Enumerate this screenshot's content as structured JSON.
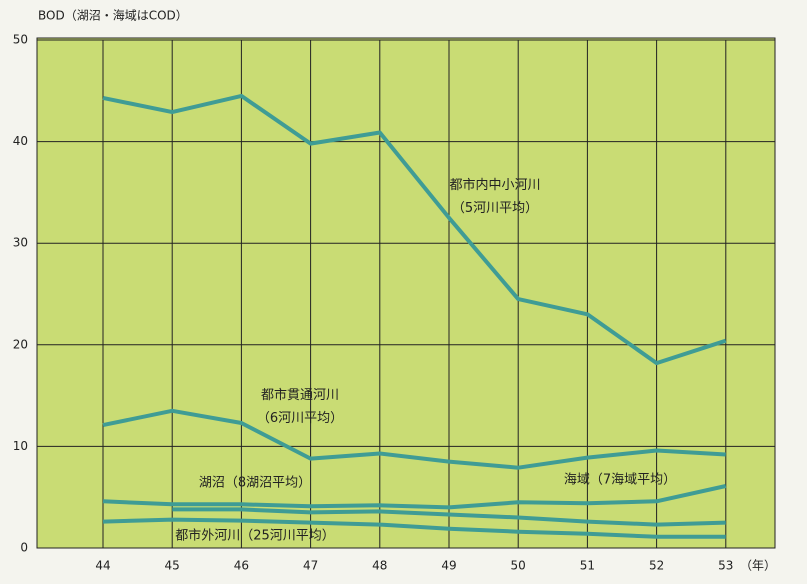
{
  "chart_data": {
    "type": "line",
    "title": "BOD（湖沼・海域はCOD）",
    "categories": [
      "44",
      "45",
      "46",
      "47",
      "48",
      "49",
      "50",
      "51",
      "52",
      "53"
    ],
    "x_unit": "（年）",
    "ylim": [
      0,
      50
    ],
    "yticks": [
      0,
      10,
      20,
      30,
      40,
      50
    ],
    "grid": true,
    "series": [
      {
        "name": "都市内中小河川（5河川平均）",
        "color": "#3f9c95",
        "values": [
          44.3,
          42.9,
          44.5,
          39.8,
          40.9,
          32.5,
          24.5,
          23.0,
          18.2,
          20.4
        ]
      },
      {
        "name": "都市貫通河川（6河川平均）",
        "color": "#3f9c95",
        "values": [
          12.1,
          13.5,
          12.3,
          8.8,
          9.3,
          8.5,
          7.9,
          8.9,
          9.6,
          9.2
        ]
      },
      {
        "name": "海域（7海域平均）",
        "color": "#3f9c95",
        "values": [
          4.6,
          4.3,
          4.3,
          4.1,
          4.2,
          4.0,
          4.5,
          4.4,
          4.6,
          6.1
        ]
      },
      {
        "name": "湖沼（8湖沼平均）",
        "color": "#3f9c95",
        "values": [
          null,
          3.8,
          3.8,
          3.5,
          3.6,
          3.3,
          3.0,
          2.6,
          2.3,
          2.5
        ]
      },
      {
        "name": "都市外河川（25河川平均）",
        "color": "#3f9c95",
        "values": [
          2.6,
          2.8,
          2.7,
          2.5,
          2.3,
          1.9,
          1.6,
          1.4,
          1.1,
          1.1
        ]
      }
    ]
  }
}
